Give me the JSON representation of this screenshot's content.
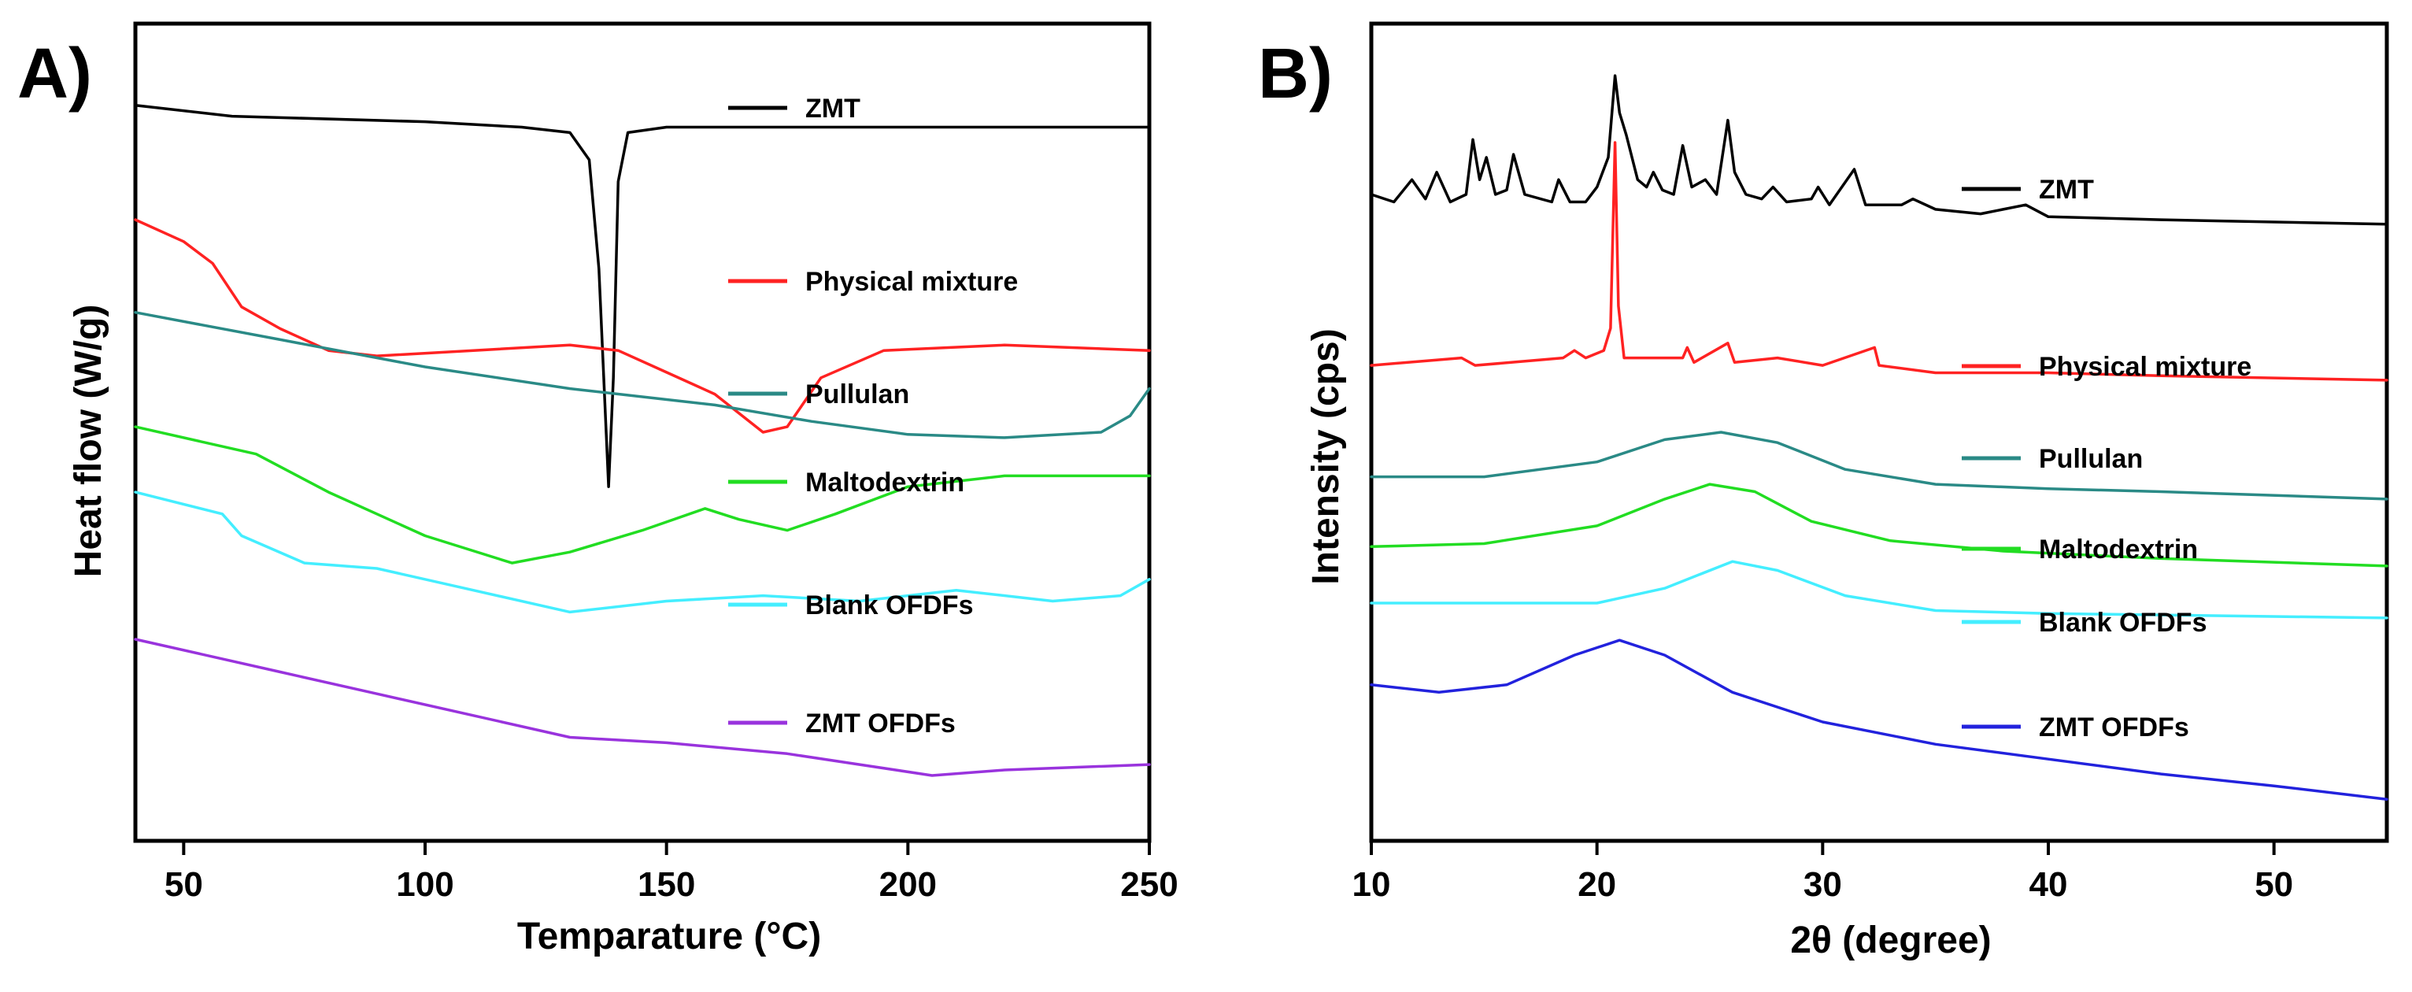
{
  "chart_data": [
    {
      "type": "line",
      "panel_label": "A)",
      "title": "",
      "xlabel": "Temparature (°C)",
      "ylabel": "Heat flow (W/g)",
      "xlim": [
        40,
        250
      ],
      "xticks": [
        "50",
        "100",
        "150",
        "200",
        "250"
      ],
      "xtick_values": [
        50,
        100,
        150,
        200,
        250
      ],
      "yticks": [],
      "legend_placement": "inline, right of each curve",
      "series": [
        {
          "name": "ZMT",
          "color": "#000000",
          "offset": 0,
          "points": [
            [
              40,
              5.0
            ],
            [
              60,
              4.9
            ],
            [
              100,
              4.85
            ],
            [
              120,
              4.8
            ],
            [
              130,
              4.75
            ],
            [
              134,
              4.5
            ],
            [
              136,
              3.5
            ],
            [
              138,
              1.5
            ],
            [
              139,
              2.5
            ],
            [
              140,
              4.3
            ],
            [
              142,
              4.75
            ],
            [
              150,
              4.8
            ],
            [
              200,
              4.8
            ],
            [
              250,
              4.8
            ]
          ]
        },
        {
          "name": "Physical mixture",
          "color": "#ff2222",
          "offset": 0,
          "points": [
            [
              40,
              3.95
            ],
            [
              50,
              3.75
            ],
            [
              56,
              3.55
            ],
            [
              62,
              3.15
            ],
            [
              70,
              2.95
            ],
            [
              80,
              2.75
            ],
            [
              90,
              2.7
            ],
            [
              110,
              2.75
            ],
            [
              130,
              2.8
            ],
            [
              140,
              2.75
            ],
            [
              150,
              2.55
            ],
            [
              160,
              2.35
            ],
            [
              170,
              2.0
            ],
            [
              175,
              2.05
            ],
            [
              182,
              2.5
            ],
            [
              195,
              2.75
            ],
            [
              220,
              2.8
            ],
            [
              250,
              2.75
            ]
          ]
        },
        {
          "name": "Pullulan",
          "color": "#2a8a86",
          "offset": 0,
          "points": [
            [
              40,
              3.1
            ],
            [
              70,
              2.85
            ],
            [
              100,
              2.6
            ],
            [
              130,
              2.4
            ],
            [
              160,
              2.25
            ],
            [
              180,
              2.1
            ],
            [
              200,
              1.98
            ],
            [
              220,
              1.95
            ],
            [
              240,
              2.0
            ],
            [
              246,
              2.15
            ],
            [
              250,
              2.4
            ]
          ]
        },
        {
          "name": "Maltodextrin",
          "color": "#22dd22",
          "offset": 0,
          "points": [
            [
              40,
              2.05
            ],
            [
              65,
              1.8
            ],
            [
              80,
              1.45
            ],
            [
              100,
              1.05
            ],
            [
              118,
              0.8
            ],
            [
              130,
              0.9
            ],
            [
              145,
              1.1
            ],
            [
              158,
              1.3
            ],
            [
              165,
              1.2
            ],
            [
              175,
              1.1
            ],
            [
              185,
              1.25
            ],
            [
              200,
              1.5
            ],
            [
              220,
              1.6
            ],
            [
              250,
              1.6
            ]
          ]
        },
        {
          "name": "Blank OFDFs",
          "color": "#44eeff",
          "offset": 0,
          "points": [
            [
              40,
              1.45
            ],
            [
              58,
              1.25
            ],
            [
              62,
              1.05
            ],
            [
              75,
              0.8
            ],
            [
              90,
              0.75
            ],
            [
              110,
              0.55
            ],
            [
              130,
              0.35
            ],
            [
              150,
              0.45
            ],
            [
              170,
              0.5
            ],
            [
              190,
              0.45
            ],
            [
              210,
              0.55
            ],
            [
              230,
              0.45
            ],
            [
              244,
              0.5
            ],
            [
              250,
              0.65
            ]
          ]
        },
        {
          "name": "ZMT OFDFs",
          "color": "#9933dd",
          "offset": 0,
          "points": [
            [
              40,
              0.1
            ],
            [
              70,
              -0.2
            ],
            [
              90,
              -0.4
            ],
            [
              110,
              -0.6
            ],
            [
              130,
              -0.8
            ],
            [
              150,
              -0.85
            ],
            [
              175,
              -0.95
            ],
            [
              190,
              -1.05
            ],
            [
              205,
              -1.15
            ],
            [
              220,
              -1.1
            ],
            [
              250,
              -1.05
            ]
          ]
        }
      ],
      "y_range_hidden": [
        -1.75,
        5.75
      ]
    },
    {
      "type": "line",
      "panel_label": "B)",
      "title": "",
      "xlabel": "2θ (degree)",
      "ylabel": "Intensity (cps)",
      "xlim": [
        10,
        55
      ],
      "xticks": [
        "10",
        "20",
        "30",
        "40",
        "50"
      ],
      "xtick_values": [
        10,
        20,
        30,
        40,
        50
      ],
      "yticks": [],
      "legend_placement": "inline, right of each curve",
      "series": [
        {
          "name": "ZMT",
          "color": "#000000",
          "points": [
            [
              10,
              3.35
            ],
            [
              11,
              3.3
            ],
            [
              11.8,
              3.45
            ],
            [
              12.4,
              3.32
            ],
            [
              12.9,
              3.5
            ],
            [
              13.5,
              3.3
            ],
            [
              14.2,
              3.35
            ],
            [
              14.5,
              3.72
            ],
            [
              14.8,
              3.45
            ],
            [
              15.1,
              3.6
            ],
            [
              15.5,
              3.35
            ],
            [
              16,
              3.38
            ],
            [
              16.3,
              3.62
            ],
            [
              16.8,
              3.35
            ],
            [
              18,
              3.3
            ],
            [
              18.3,
              3.45
            ],
            [
              18.8,
              3.3
            ],
            [
              19.5,
              3.3
            ],
            [
              20,
              3.4
            ],
            [
              20.5,
              3.6
            ],
            [
              20.8,
              4.15
            ],
            [
              21.0,
              3.9
            ],
            [
              21.3,
              3.75
            ],
            [
              21.8,
              3.45
            ],
            [
              22.2,
              3.4
            ],
            [
              22.5,
              3.5
            ],
            [
              22.9,
              3.38
            ],
            [
              23.4,
              3.35
            ],
            [
              23.8,
              3.68
            ],
            [
              24.2,
              3.4
            ],
            [
              24.8,
              3.45
            ],
            [
              25.3,
              3.35
            ],
            [
              25.8,
              3.85
            ],
            [
              26.1,
              3.5
            ],
            [
              26.6,
              3.35
            ],
            [
              27.3,
              3.32
            ],
            [
              27.8,
              3.4
            ],
            [
              28.4,
              3.3
            ],
            [
              29.5,
              3.32
            ],
            [
              29.8,
              3.4
            ],
            [
              30.3,
              3.28
            ],
            [
              31.4,
              3.52
            ],
            [
              31.9,
              3.28
            ],
            [
              33.5,
              3.28
            ],
            [
              34,
              3.32
            ],
            [
              35,
              3.25
            ],
            [
              37,
              3.22
            ],
            [
              39,
              3.28
            ],
            [
              40,
              3.2
            ],
            [
              45,
              3.18
            ],
            [
              55,
              3.15
            ]
          ]
        },
        {
          "name": "Physical mixture",
          "color": "#ff2222",
          "points": [
            [
              10,
              2.2
            ],
            [
              14,
              2.25
            ],
            [
              14.6,
              2.2
            ],
            [
              16.2,
              2.22
            ],
            [
              18.5,
              2.25
            ],
            [
              19,
              2.3
            ],
            [
              19.5,
              2.25
            ],
            [
              20.3,
              2.3
            ],
            [
              20.6,
              2.45
            ],
            [
              20.8,
              3.7
            ],
            [
              20.95,
              2.6
            ],
            [
              21.2,
              2.25
            ],
            [
              23.8,
              2.25
            ],
            [
              24,
              2.32
            ],
            [
              24.3,
              2.22
            ],
            [
              25.8,
              2.35
            ],
            [
              26.1,
              2.22
            ],
            [
              28,
              2.25
            ],
            [
              30,
              2.2
            ],
            [
              32.3,
              2.32
            ],
            [
              32.5,
              2.2
            ],
            [
              35,
              2.15
            ],
            [
              40,
              2.15
            ],
            [
              45,
              2.13
            ],
            [
              55,
              2.1
            ]
          ]
        },
        {
          "name": "Pullulan",
          "color": "#2a8a86",
          "points": [
            [
              10,
              1.45
            ],
            [
              15,
              1.45
            ],
            [
              20,
              1.55
            ],
            [
              23,
              1.7
            ],
            [
              25.5,
              1.75
            ],
            [
              28,
              1.68
            ],
            [
              31,
              1.5
            ],
            [
              35,
              1.4
            ],
            [
              40,
              1.37
            ],
            [
              45,
              1.35
            ],
            [
              55,
              1.3
            ]
          ]
        },
        {
          "name": "Maltodextrin",
          "color": "#22dd22",
          "points": [
            [
              10,
              0.98
            ],
            [
              15,
              1.0
            ],
            [
              20,
              1.12
            ],
            [
              23,
              1.3
            ],
            [
              25,
              1.4
            ],
            [
              27,
              1.35
            ],
            [
              29.5,
              1.15
            ],
            [
              33,
              1.02
            ],
            [
              38,
              0.95
            ],
            [
              45,
              0.9
            ],
            [
              55,
              0.85
            ]
          ]
        },
        {
          "name": "Blank OFDFs",
          "color": "#44eeff",
          "points": [
            [
              10,
              0.6
            ],
            [
              15,
              0.6
            ],
            [
              20,
              0.6
            ],
            [
              23,
              0.7
            ],
            [
              26,
              0.88
            ],
            [
              28,
              0.82
            ],
            [
              31,
              0.65
            ],
            [
              35,
              0.55
            ],
            [
              40,
              0.53
            ],
            [
              45,
              0.52
            ],
            [
              55,
              0.5
            ]
          ]
        },
        {
          "name": "ZMT OFDFs",
          "color": "#2222dd",
          "points": [
            [
              10,
              0.05
            ],
            [
              13,
              0.0
            ],
            [
              16,
              0.05
            ],
            [
              19,
              0.25
            ],
            [
              21,
              0.35
            ],
            [
              23,
              0.25
            ],
            [
              26,
              0.0
            ],
            [
              30,
              -0.2
            ],
            [
              35,
              -0.35
            ],
            [
              40,
              -0.45
            ],
            [
              45,
              -0.55
            ],
            [
              50,
              -0.63
            ],
            [
              55,
              -0.72
            ]
          ]
        }
      ],
      "y_range_hidden": [
        -1.0,
        4.5
      ]
    }
  ]
}
